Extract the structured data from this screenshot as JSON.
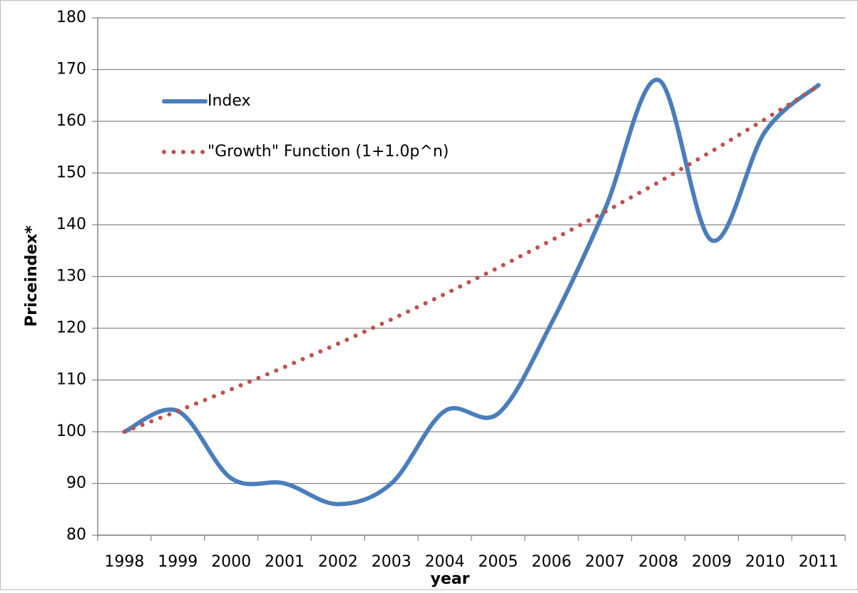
{
  "chart_data": {
    "type": "line",
    "y_label": "Priceindex*",
    "x_label": "year",
    "categories": [
      "1998",
      "1999",
      "2000",
      "2001",
      "2002",
      "2003",
      "2004",
      "2005",
      "2006",
      "2007",
      "2008",
      "2009",
      "2010",
      "2011"
    ],
    "series": [
      {
        "name": "Index",
        "color": "#4a7ebb",
        "style": "solid",
        "smooth": true,
        "values": [
          100,
          104,
          91,
          90,
          86,
          90,
          104,
          103.5,
          121,
          143,
          168,
          137,
          158,
          167
        ]
      },
      {
        "name": "\"Growth\" Function (1+1.0p^n)",
        "color": "#c0504d",
        "style": "dotted",
        "smooth": false,
        "values": [
          100,
          104.0,
          108.2,
          112.5,
          117.0,
          121.7,
          126.6,
          131.7,
          137.0,
          142.5,
          148.2,
          154.2,
          160.4,
          166.8
        ]
      }
    ],
    "ylim": [
      80,
      180
    ],
    "yticks": [
      80,
      90,
      100,
      110,
      120,
      130,
      140,
      150,
      160,
      170,
      180
    ],
    "grid": true,
    "legend": "upper-left"
  }
}
